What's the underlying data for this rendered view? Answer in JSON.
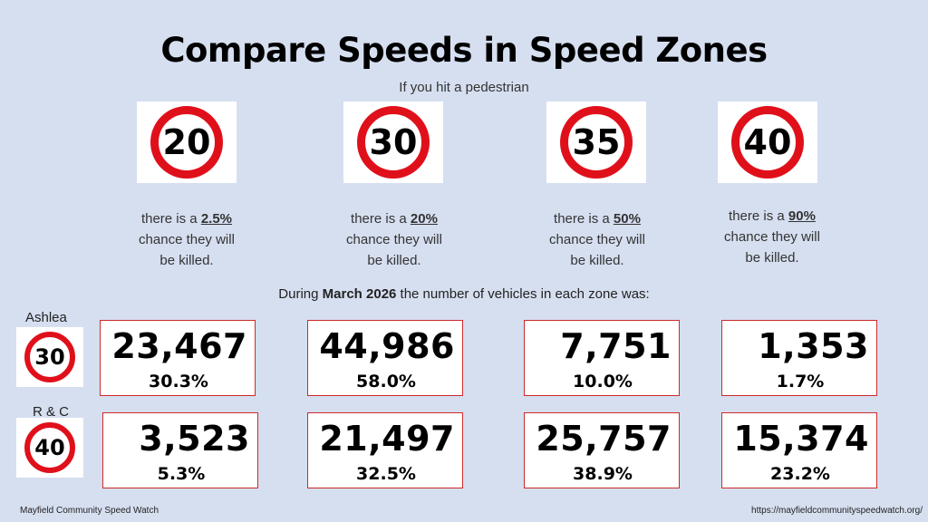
{
  "title": "Compare Speeds in Speed Zones",
  "subtitle": "If you hit a pedestrian",
  "speed_signs": [
    {
      "limit": "20",
      "prefix": "there is a ",
      "pct": "2.5%",
      "line2": "chance they will",
      "line3": "be killed."
    },
    {
      "limit": "30",
      "prefix": "there is a ",
      "pct": "20%",
      "line2": "chance they will",
      "line3": "be killed."
    },
    {
      "limit": "35",
      "prefix": "there is a ",
      "pct": "50%",
      "line2": "chance they will",
      "line3": "be killed."
    },
    {
      "limit": "40",
      "prefix": "there is a ",
      "pct": "90%",
      "line2": "chance they will",
      "line3": "be killed."
    }
  ],
  "during": {
    "prefix": "During ",
    "month": "March 2026",
    "suffix": " the number of vehicles in each zone was:"
  },
  "zones": [
    {
      "name": "Ashlea",
      "limit": "30",
      "counts": [
        {
          "value": "23,467",
          "percent": "30.3%"
        },
        {
          "value": "44,986",
          "percent": "58.0%"
        },
        {
          "value": "7,751",
          "percent": "10.0%"
        },
        {
          "value": "1,353",
          "percent": "1.7%"
        }
      ]
    },
    {
      "name": "R & C",
      "limit": "40",
      "counts": [
        {
          "value": "3,523",
          "percent": "5.3%"
        },
        {
          "value": "21,497",
          "percent": "32.5%"
        },
        {
          "value": "25,757",
          "percent": "38.9%"
        },
        {
          "value": "15,374",
          "percent": "23.2%"
        }
      ]
    }
  ],
  "footer": {
    "left": "Mayfield Community Speed Watch",
    "right": "https://mayfieldcommunityspeedwatch.org/"
  },
  "colors": {
    "background": "#d6dff0",
    "sign_red": "#e0101b",
    "box_border": "#cc2a2a"
  }
}
